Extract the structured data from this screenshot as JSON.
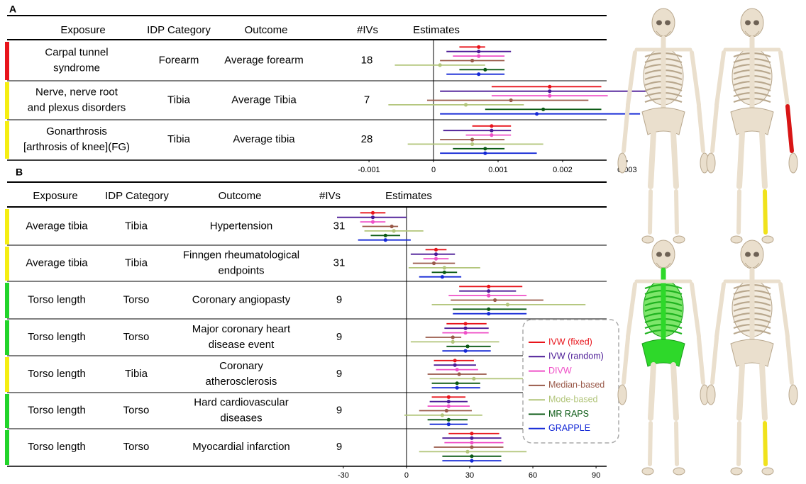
{
  "panels": [
    {
      "label": "A",
      "headers": [
        "Exposure",
        "IDP Category",
        "Outcome",
        "#IVs",
        "Estimates"
      ],
      "xlim": [
        -0.0011,
        0.0031
      ],
      "xticks": [
        -0.001,
        0,
        0.001,
        0.002,
        0.003
      ],
      "rows": [
        {
          "exposure": [
            "Carpal tunnel",
            "syndrome"
          ],
          "category": "Forearm",
          "outcome": [
            "Average forearm"
          ],
          "n_ivs": 18,
          "color": "#e8141b",
          "estimates": [
            [
              0.0007,
              0.0004,
              0.0008
            ],
            [
              0.0007,
              0.0002,
              0.0012
            ],
            [
              0.0007,
              0.0003,
              0.0011
            ],
            [
              0.0006,
              0.0001,
              0.0011
            ],
            [
              0.0001,
              -0.0006,
              0.0008
            ],
            [
              0.0008,
              0.0004,
              0.0011
            ],
            [
              0.0007,
              0.0002,
              0.0011
            ]
          ]
        },
        {
          "exposure": [
            "Nerve, nerve root",
            "and plexus disorders"
          ],
          "category": "Tibia",
          "outcome": [
            "Average Tibia"
          ],
          "n_ivs": 7,
          "color": "#f5ee12",
          "estimates": [
            [
              0.0018,
              0.0009,
              0.0026
            ],
            [
              0.0018,
              0.0001,
              0.0034
            ],
            [
              0.0018,
              0.0009,
              0.0027
            ],
            [
              0.0012,
              -0.0001,
              0.0024
            ],
            [
              0.0005,
              -0.0007,
              0.0014
            ],
            [
              0.0017,
              0.0008,
              0.0026
            ],
            [
              0.0016,
              0.0001,
              0.0032
            ]
          ]
        },
        {
          "exposure": [
            "Gonarthrosis",
            "[arthrosis of knee](FG)"
          ],
          "category": "Tibia",
          "outcome": [
            "Average tibia"
          ],
          "n_ivs": 28,
          "color": "#f5ee12",
          "estimates": [
            [
              0.0009,
              0.0006,
              0.0012
            ],
            [
              0.0009,
              0.00015,
              0.0012
            ],
            [
              0.0009,
              0.0005,
              0.0012
            ],
            [
              0.0006,
              0.0001,
              0.0011
            ],
            [
              0.0006,
              -0.0004,
              0.0017
            ],
            [
              0.0008,
              0.0003,
              0.0011
            ],
            [
              0.0008,
              0.0001,
              0.0016
            ]
          ]
        }
      ]
    },
    {
      "label": "B",
      "headers": [
        "Exposure",
        "IDP Category",
        "Outcome",
        "#IVs",
        "Estimates"
      ],
      "xlim": [
        -33,
        93
      ],
      "xticks": [
        -30,
        0,
        30,
        60,
        90
      ],
      "rows": [
        {
          "exposure": [
            "Average tibia"
          ],
          "category": "Tibia",
          "outcome": [
            "Hypertension"
          ],
          "n_ivs": 31,
          "color": "#f5ee12",
          "estimates": [
            [
              -16,
              -22,
              -10
            ],
            [
              -16,
              -33,
              0
            ],
            [
              -16,
              -22,
              -10
            ],
            [
              -7,
              -21,
              -4
            ],
            [
              -6,
              -20,
              8
            ],
            [
              -10,
              -17,
              -3
            ],
            [
              -10,
              -23,
              2
            ]
          ]
        },
        {
          "exposure": [
            "Average tibia"
          ],
          "category": "Tibia",
          "outcome": [
            "Finngen rheumatological",
            "endpoints"
          ],
          "n_ivs": 31,
          "color": "#f5ee12",
          "estimates": [
            [
              14,
              9,
              19
            ],
            [
              14,
              2,
              23
            ],
            [
              14,
              8,
              20
            ],
            [
              13,
              3,
              23
            ],
            [
              18,
              1,
              35
            ],
            [
              18,
              12,
              24
            ],
            [
              17,
              6,
              26
            ]
          ]
        },
        {
          "exposure": [
            "Torso length"
          ],
          "category": "Torso",
          "outcome": [
            "Coronary angiopasty"
          ],
          "n_ivs": 9,
          "color": "#22d42a",
          "estimates": [
            [
              39,
              25,
              55
            ],
            [
              39,
              25,
              52
            ],
            [
              39,
              20,
              57
            ],
            [
              42,
              21,
              65
            ],
            [
              48,
              12,
              85
            ],
            [
              39,
              22,
              57
            ],
            [
              39,
              22,
              57
            ]
          ]
        },
        {
          "exposure": [
            "Torso length"
          ],
          "category": "Torso",
          "outcome": [
            "Major coronary heart",
            "disease event"
          ],
          "n_ivs": 9,
          "color": "#22d42a",
          "estimates": [
            [
              28,
              19,
              38
            ],
            [
              28,
              18,
              39
            ],
            [
              28,
              17,
              39
            ],
            [
              22,
              9,
              26
            ],
            [
              22,
              2,
              44
            ],
            [
              29,
              19,
              40
            ],
            [
              28,
              17,
              40
            ]
          ]
        },
        {
          "exposure": [
            "Torso length"
          ],
          "category": "Tibia",
          "outcome": [
            "Coronary",
            "atherosclerosis"
          ],
          "n_ivs": 9,
          "color": "#f5ee12",
          "estimates": [
            [
              23,
              13,
              32
            ],
            [
              23,
              13,
              33
            ],
            [
              24,
              14,
              34
            ],
            [
              25,
              10,
              38
            ],
            [
              32,
              11,
              57
            ],
            [
              24,
              12,
              35
            ],
            [
              24,
              12,
              35
            ]
          ]
        },
        {
          "exposure": [
            "Torso length"
          ],
          "category": "Torso",
          "outcome": [
            "Hard cardiovascular",
            "diseases"
          ],
          "n_ivs": 9,
          "color": "#22d42a",
          "estimates": [
            [
              20,
              12,
              28
            ],
            [
              20,
              11,
              29
            ],
            [
              20,
              10,
              30
            ],
            [
              19,
              6,
              31
            ],
            [
              17,
              -1,
              36
            ],
            [
              20,
              10,
              29
            ],
            [
              20,
              11,
              29
            ]
          ]
        },
        {
          "exposure": [
            "Torso length"
          ],
          "category": "Torso",
          "outcome": [
            "Myocardial infarction"
          ],
          "n_ivs": 9,
          "color": "#22d42a",
          "estimates": [
            [
              31,
              20,
              44
            ],
            [
              31,
              17,
              45
            ],
            [
              31,
              18,
              46
            ],
            [
              31,
              13,
              46
            ],
            [
              29,
              6,
              57
            ],
            [
              31,
              17,
              45
            ],
            [
              31,
              17,
              45
            ]
          ]
        }
      ]
    }
  ],
  "methods": [
    {
      "name": "IVW (fixed)",
      "color": "#e8141b"
    },
    {
      "name": "IVW (random)",
      "color": "#4b1a96"
    },
    {
      "name": "DIVW",
      "color": "#ef4fc7"
    },
    {
      "name": "Median-based",
      "color": "#9a5a4a"
    },
    {
      "name": "Mode-based",
      "color": "#b2c57a"
    },
    {
      "name": "MR RAPS",
      "color": "#0b5a14"
    },
    {
      "name": "GRAPPLE",
      "color": "#1428d6"
    }
  ]
}
